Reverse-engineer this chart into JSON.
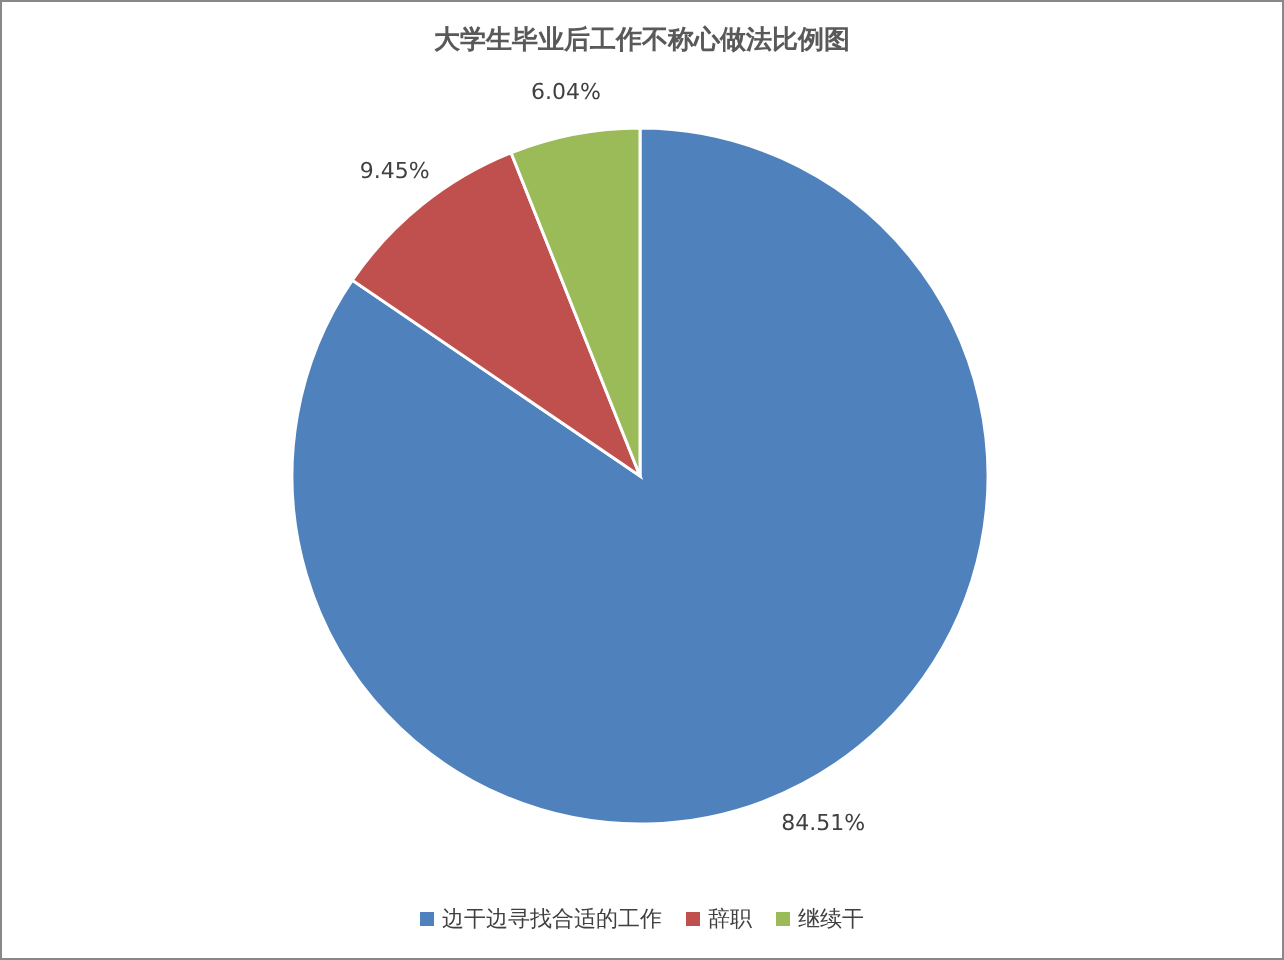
{
  "chart_data": {
    "type": "pie",
    "title": "大学生毕业后工作不称心做法比例图",
    "categories": [
      "边干边寻找合适的工作",
      "辞职",
      "继续干"
    ],
    "values": [
      84.51,
      9.45,
      6.04
    ],
    "colors": [
      "#4f81bd",
      "#c0504d",
      "#9bbb59"
    ],
    "value_labels": [
      "84.51%",
      "9.45%",
      "6.04%"
    ],
    "legend": "bottom"
  }
}
